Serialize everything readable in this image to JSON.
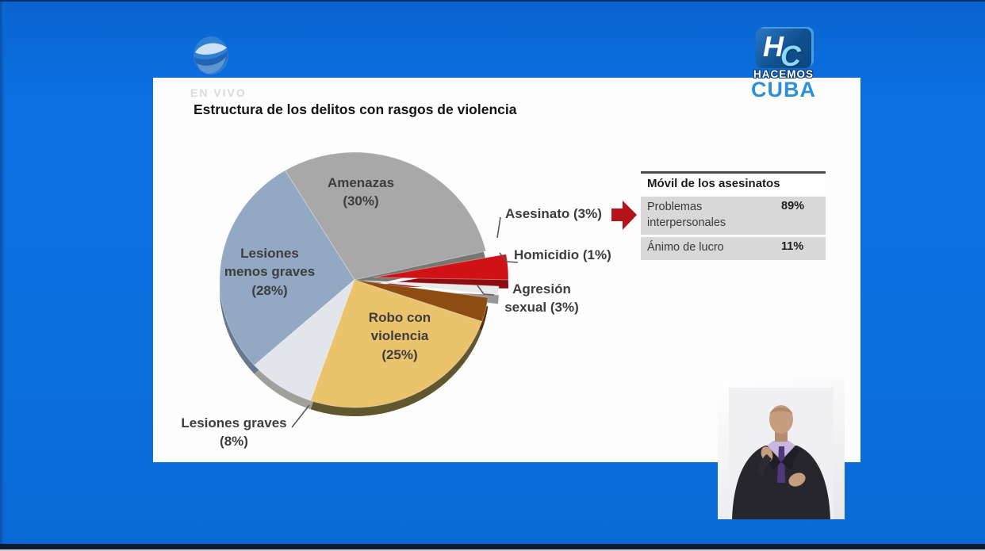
{
  "broadcast": {
    "en_vivo": "EN VIVO",
    "title": "Estructura de los delitos con rasgos de violencia",
    "channel_logo": "canal-caribe-sphere",
    "hc_logo": {
      "h": "H",
      "c": "C",
      "line1": "HACEMOS",
      "line2": "CUBA"
    }
  },
  "colors": {
    "bg_blue": "#0b6fdd",
    "slide_white": "#fdfdfd",
    "arrow_red": "#b5121a",
    "table_row_gray": "#d8d8d8",
    "label_text": "#3d3d3d"
  },
  "chart_data": [
    {
      "type": "pie",
      "title": "Estructura de los delitos con rasgos de violencia",
      "legend_position": "outside-labels",
      "slices": [
        {
          "label": "Amenazas",
          "pct": 30,
          "display": "Amenazas\n(30%)",
          "color": "#a8a8a8",
          "side_color": "#777772",
          "start_deg": 13,
          "end_deg": 121,
          "explode": [
            0,
            0
          ]
        },
        {
          "label": "Lesiones menos graves",
          "pct": 28,
          "display": "Lesiones\nmenos graves\n(28%)",
          "color": "#92a8c3",
          "side_color": "#66798f",
          "start_deg": 121,
          "end_deg": 222,
          "explode": [
            0,
            0
          ]
        },
        {
          "label": "Lesiones graves",
          "pct": 8,
          "display": "Lesiones graves\n(8%)",
          "color": "#e2e5e9",
          "side_color": "#9fa09c",
          "start_deg": 222,
          "end_deg": 251,
          "explode": [
            0,
            0
          ]
        },
        {
          "label": "Robo con violencia",
          "pct": 25,
          "display": "Robo con\nviolencia\n(25%)",
          "color": "#ebc36c",
          "side_color": "#60572f",
          "start_deg": 251,
          "end_deg": 341,
          "explode": [
            0,
            0
          ]
        },
        {
          "label": "Agresión sexual",
          "pct": 3,
          "display": "Agresión\nsexual (3%)",
          "color": "#8c4c12",
          "side_color": "#542e08",
          "start_deg": 341,
          "end_deg": 352,
          "explode": [
            0,
            0
          ]
        },
        {
          "label": "Homicidio",
          "pct": 1,
          "display": "Homicidio (1%)",
          "color": "#e9e9e9",
          "side_color": "#97979a",
          "start_deg": 353.5,
          "end_deg": 357.5,
          "explode": [
            12,
            1
          ]
        },
        {
          "label": "Asesinato",
          "pct": 3,
          "display": "Asesinato  (3%)",
          "color": "#d01217",
          "side_color": "#8b0d11",
          "start_deg": 359,
          "end_deg": 370.5,
          "explode": [
            24,
            -3
          ]
        }
      ]
    },
    {
      "type": "table",
      "title": "Móvil de los asesinatos",
      "rows": [
        {
          "label": "Problemas interpersonales",
          "value": "89%"
        },
        {
          "label": "Ánimo de lucro",
          "value": "11%"
        }
      ]
    }
  ]
}
